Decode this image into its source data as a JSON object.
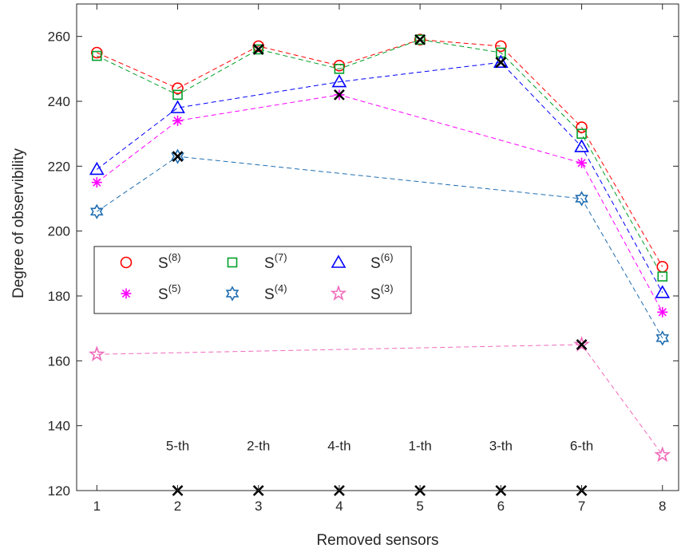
{
  "chart_data": {
    "type": "line",
    "title": "",
    "xlabel": "Removed sensors",
    "ylabel": "Degree of observibility",
    "xlim": [
      0.75,
      8.2
    ],
    "ylim": [
      120,
      270
    ],
    "x_ticks": [
      1,
      2,
      3,
      4,
      5,
      6,
      7,
      8
    ],
    "y_ticks": [
      120,
      140,
      160,
      180,
      200,
      220,
      240,
      260
    ],
    "grid": false,
    "legend_position": "middle-left",
    "series": [
      {
        "name": "S",
        "sup": "(8)",
        "marker": "circle",
        "color": "#ff0000",
        "x": [
          1,
          2,
          3,
          4,
          5,
          6,
          7,
          8
        ],
        "y": [
          255,
          244,
          257,
          251,
          259,
          257,
          232,
          189
        ]
      },
      {
        "name": "S",
        "sup": "(7)",
        "marker": "square",
        "color": "#00a02a",
        "x": [
          1,
          2,
          3,
          4,
          5,
          6,
          7,
          8
        ],
        "y": [
          254,
          242,
          256,
          250,
          259,
          255,
          230,
          186
        ]
      },
      {
        "name": "S",
        "sup": "(6)",
        "marker": "triangle",
        "color": "#0000ff",
        "x": [
          1,
          2,
          4,
          6,
          7,
          8
        ],
        "y": [
          219,
          238,
          246,
          252,
          226,
          181
        ]
      },
      {
        "name": "S",
        "sup": "(5)",
        "marker": "asterisk",
        "color": "#ff00ff",
        "x": [
          1,
          2,
          4,
          7,
          8
        ],
        "y": [
          215,
          234,
          242,
          221,
          175
        ]
      },
      {
        "name": "S",
        "sup": "(4)",
        "marker": "hexagram",
        "color": "#1f6db0",
        "x": [
          1,
          2,
          7,
          8
        ],
        "y": [
          206,
          223,
          210,
          167
        ]
      },
      {
        "name": "S",
        "sup": "(3)",
        "marker": "pentagram",
        "color": "#f06aba",
        "x": [
          1,
          7,
          8
        ],
        "y": [
          162,
          165,
          131
        ]
      }
    ],
    "removed_markers": [
      {
        "x": 2,
        "y": 223
      },
      {
        "x": 3,
        "y": 256
      },
      {
        "x": 4,
        "y": 242
      },
      {
        "x": 5,
        "y": 259
      },
      {
        "x": 6,
        "y": 252
      },
      {
        "x": 7,
        "y": 165
      }
    ],
    "bottom_markers": [
      {
        "x": 2,
        "y": 120
      },
      {
        "x": 3,
        "y": 120
      },
      {
        "x": 4,
        "y": 120
      },
      {
        "x": 5,
        "y": 120
      },
      {
        "x": 6,
        "y": 120
      },
      {
        "x": 7,
        "y": 120
      }
    ],
    "order_labels": [
      {
        "x": 2,
        "text": "5-th"
      },
      {
        "x": 3,
        "text": "2-th"
      },
      {
        "x": 4,
        "text": "4-th"
      },
      {
        "x": 5,
        "text": "1-th"
      },
      {
        "x": 6,
        "text": "3-th"
      },
      {
        "x": 7,
        "text": "6-th"
      }
    ]
  }
}
